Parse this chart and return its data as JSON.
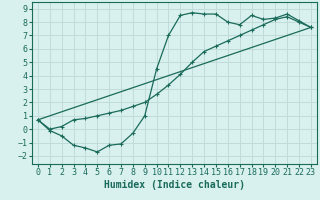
{
  "title": "",
  "xlabel": "Humidex (Indice chaleur)",
  "background_color": "#d8f0ee",
  "grid_color": "#c0dbd8",
  "line_color": "#1a6b5a",
  "xlim": [
    -0.5,
    23.5
  ],
  "ylim": [
    -2.6,
    9.5
  ],
  "xticks": [
    0,
    1,
    2,
    3,
    4,
    5,
    6,
    7,
    8,
    9,
    10,
    11,
    12,
    13,
    14,
    15,
    16,
    17,
    18,
    19,
    20,
    21,
    22,
    23
  ],
  "yticks": [
    -2,
    -1,
    0,
    1,
    2,
    3,
    4,
    5,
    6,
    7,
    8,
    9
  ],
  "series1_x": [
    0,
    1,
    2,
    3,
    4,
    5,
    6,
    7,
    8,
    9,
    10,
    11,
    12,
    13,
    14,
    15,
    16,
    17,
    18,
    19,
    20,
    21,
    22,
    23
  ],
  "series1_y": [
    0.7,
    -0.1,
    -0.5,
    -1.2,
    -1.4,
    -1.7,
    -1.2,
    -1.1,
    -0.3,
    1.0,
    4.5,
    7.0,
    8.5,
    8.7,
    8.6,
    8.6,
    8.0,
    7.8,
    8.5,
    8.2,
    8.3,
    8.6,
    8.1,
    7.6
  ],
  "series2_x": [
    0,
    1,
    2,
    3,
    4,
    5,
    6,
    7,
    8,
    9,
    10,
    11,
    12,
    13,
    14,
    15,
    16,
    17,
    18,
    19,
    20,
    21,
    22,
    23
  ],
  "series2_y": [
    0.7,
    0.0,
    0.2,
    0.7,
    0.8,
    1.0,
    1.2,
    1.4,
    1.7,
    2.0,
    2.6,
    3.3,
    4.1,
    5.0,
    5.8,
    6.2,
    6.6,
    7.0,
    7.4,
    7.8,
    8.2,
    8.4,
    8.0,
    7.6
  ],
  "series3_x": [
    0,
    23
  ],
  "series3_y": [
    0.7,
    7.6
  ],
  "xlabel_fontsize": 7,
  "tick_fontsize": 6
}
